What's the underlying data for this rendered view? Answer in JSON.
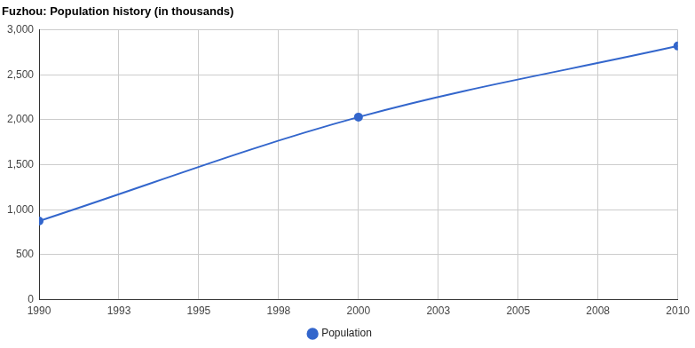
{
  "chart_data": {
    "type": "line",
    "title": "Fuzhou: Population history (in thousands)",
    "x": [
      1990,
      2000,
      2010
    ],
    "series": [
      {
        "name": "Population",
        "color": "#3366cc",
        "values": [
          875,
          2030,
          2820
        ],
        "marker": "circle"
      }
    ],
    "xlim": [
      1990,
      2010
    ],
    "xticks": [
      1990,
      {
        "value": 1992.5,
        "label": "1993"
      },
      1995,
      {
        "value": 1997.5,
        "label": "1998"
      },
      2000,
      {
        "value": 2002.5,
        "label": "2003"
      },
      2005,
      {
        "value": 2007.5,
        "label": "2008"
      },
      2010
    ],
    "ylim": [
      0,
      3000
    ],
    "yticks": [
      0,
      500,
      {
        "value": 1000,
        "label": "1,000"
      },
      {
        "value": 1500,
        "label": "1,500"
      },
      {
        "value": 2000,
        "label": "2,000"
      },
      {
        "value": 2500,
        "label": "2,500"
      },
      {
        "value": 3000,
        "label": "3,000"
      }
    ],
    "grid": true,
    "legend": "bottom"
  }
}
